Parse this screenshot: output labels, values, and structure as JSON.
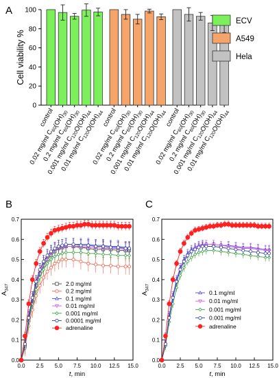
{
  "chart_data": [
    {
      "panel": "A",
      "type": "bar",
      "ylabel": "Cell viability %",
      "ylim": [
        0,
        100
      ],
      "yticks": [
        0,
        20,
        40,
        60,
        80,
        100
      ],
      "legend_position": "right",
      "groups": [
        {
          "name": "ECV",
          "color": "#7cf05a",
          "categories": [
            "control",
            "0.02 mg/ml C60(OH)30",
            "0.2 mg/ml C60(OH)30",
            "0.001 mg/ml C120O(OH)44",
            "0.01 mg/ml C120O(OH)44"
          ],
          "values": [
            100,
            97,
            93,
            99.5,
            97.5
          ],
          "errors": [
            0,
            8,
            3,
            6.5,
            4
          ]
        },
        {
          "name": "A549",
          "color": "#f5a46a",
          "categories": [
            "control",
            "0.02 mg/ml C60(OH)30",
            "0.2 mg/ml C60(OH)30",
            "0.001 mg/ml C120O(OH)44",
            "0.01 mg/ml C120O(OH)44"
          ],
          "values": [
            100,
            95,
            90,
            98.5,
            92.5
          ],
          "errors": [
            0,
            5,
            5,
            2,
            3
          ]
        },
        {
          "name": "Hela",
          "color": "#c2c2c2",
          "categories": [
            "control",
            "0.02 mg/ml C60(OH)30",
            "0.2 mg/ml C60(OH)30",
            "0.001 mg/ml C120O(OH)44",
            "0.01 mg/ml C120O(OH)44"
          ],
          "values": [
            100,
            95,
            93,
            86,
            84
          ],
          "errors": [
            0,
            7,
            4,
            8,
            8
          ]
        }
      ]
    },
    {
      "panel": "B",
      "type": "line",
      "xlabel_italic": "t",
      "xlabel_rest": ", min",
      "ylabel": "A",
      "ylabel_sub": "347",
      "xlim": [
        0,
        15
      ],
      "ylim": [
        0,
        0.7
      ],
      "xticks": [
        "0.0",
        "2.5",
        "5.0",
        "7.5",
        "10.0",
        "12.5",
        "15.0"
      ],
      "yticks": [
        "0.0",
        "0.1",
        "0.2",
        "0.3",
        "0.4",
        "0.5",
        "0.6",
        "0.7"
      ],
      "legend_position": "bottom-right",
      "series": [
        {
          "name": "2.0 mg/ml",
          "color": "#444444",
          "marker": "square-open",
          "x": [
            0,
            0.5,
            1,
            1.5,
            2,
            2.5,
            3,
            3.5,
            4,
            4.5,
            5,
            5.5,
            6,
            7,
            8,
            9,
            10,
            11,
            12,
            13,
            14,
            14.5
          ],
          "y": [
            0.0,
            0.07,
            0.2,
            0.29,
            0.37,
            0.43,
            0.47,
            0.5,
            0.52,
            0.54,
            0.555,
            0.56,
            0.565,
            0.565,
            0.56,
            0.555,
            0.55,
            0.55,
            0.55,
            0.545,
            0.545,
            0.545
          ],
          "err": 0.04
        },
        {
          "name": "0.2 mg/ml",
          "color": "#ff5a46",
          "marker": "circle-open",
          "x": [
            0,
            0.5,
            1,
            1.5,
            2,
            2.5,
            3,
            3.5,
            4,
            4.5,
            5,
            5.5,
            6,
            7,
            8,
            9,
            10,
            11,
            12,
            13,
            14,
            14.5
          ],
          "y": [
            0.0,
            0.06,
            0.17,
            0.25,
            0.32,
            0.37,
            0.41,
            0.44,
            0.46,
            0.48,
            0.49,
            0.5,
            0.5,
            0.5,
            0.49,
            0.48,
            0.475,
            0.47,
            0.47,
            0.465,
            0.465,
            0.465
          ],
          "err": 0.04
        },
        {
          "name": "0.1 mg/ml",
          "color": "#4a4ae6",
          "marker": "triangle-open",
          "x": [
            0,
            0.5,
            1,
            1.5,
            2,
            2.5,
            3,
            3.5,
            4,
            4.5,
            5,
            5.5,
            6,
            7,
            8,
            9,
            10,
            11,
            12,
            13,
            14,
            14.5
          ],
          "y": [
            0.0,
            0.08,
            0.22,
            0.31,
            0.39,
            0.45,
            0.49,
            0.52,
            0.54,
            0.555,
            0.565,
            0.57,
            0.575,
            0.575,
            0.575,
            0.575,
            0.57,
            0.57,
            0.565,
            0.565,
            0.56,
            0.56
          ],
          "err": 0.03
        },
        {
          "name": "0.01 mg/ml",
          "color": "#e055e0",
          "marker": "triangle-down-open",
          "x": [
            0,
            0.5,
            1,
            1.5,
            2,
            2.5,
            3,
            3.5,
            4,
            4.5,
            5,
            5.5,
            6,
            7,
            8,
            9,
            10,
            11,
            12,
            13,
            14,
            14.5
          ],
          "y": [
            0.0,
            0.08,
            0.21,
            0.3,
            0.38,
            0.44,
            0.48,
            0.51,
            0.53,
            0.545,
            0.555,
            0.56,
            0.565,
            0.565,
            0.565,
            0.56,
            0.56,
            0.555,
            0.555,
            0.555,
            0.55,
            0.55
          ],
          "err": 0.03
        },
        {
          "name": "0.001 mg/ml",
          "color": "#3da53d",
          "marker": "diamond-open",
          "x": [
            0,
            0.5,
            1,
            1.5,
            2,
            2.5,
            3,
            3.5,
            4,
            4.5,
            5,
            5.5,
            6,
            7,
            8,
            9,
            10,
            11,
            12,
            13,
            14,
            14.5
          ],
          "y": [
            0.0,
            0.07,
            0.19,
            0.28,
            0.35,
            0.41,
            0.45,
            0.48,
            0.5,
            0.515,
            0.525,
            0.53,
            0.535,
            0.535,
            0.535,
            0.53,
            0.53,
            0.525,
            0.525,
            0.52,
            0.52,
            0.52
          ],
          "err": 0.03
        },
        {
          "name": "0.0001 mg/ml",
          "color": "#2e3fa8",
          "marker": "circle-open",
          "x": [
            0,
            0.5,
            1,
            1.5,
            2,
            2.5,
            3,
            3.5,
            4,
            4.5,
            5,
            5.5,
            6,
            7,
            8,
            9,
            10,
            11,
            12,
            13,
            14,
            14.5
          ],
          "y": [
            0.0,
            0.08,
            0.21,
            0.31,
            0.39,
            0.45,
            0.49,
            0.52,
            0.54,
            0.555,
            0.565,
            0.57,
            0.575,
            0.575,
            0.57,
            0.57,
            0.565,
            0.565,
            0.56,
            0.56,
            0.555,
            0.555
          ],
          "err": 0.03
        },
        {
          "name": "adrenaline",
          "color": "#ff2020",
          "marker": "circle-filled",
          "x": [
            0,
            0.5,
            1,
            1.5,
            2,
            2.5,
            3,
            3.5,
            4,
            4.5,
            5,
            5.5,
            6,
            6.5,
            7,
            7.5,
            8,
            8.5,
            9,
            9.5,
            10,
            10.5,
            11,
            11.5,
            12,
            12.5,
            13,
            13.5,
            14,
            14.5
          ],
          "y": [
            0.0,
            0.12,
            0.28,
            0.4,
            0.48,
            0.54,
            0.58,
            0.61,
            0.63,
            0.645,
            0.65,
            0.655,
            0.66,
            0.665,
            0.665,
            0.67,
            0.67,
            0.675,
            0.675,
            0.67,
            0.67,
            0.67,
            0.67,
            0.67,
            0.67,
            0.67,
            0.665,
            0.665,
            0.665,
            0.665
          ],
          "err": 0.02
        }
      ]
    },
    {
      "panel": "C",
      "type": "line",
      "xlabel_italic": "t",
      "xlabel_rest": ", min",
      "ylabel": "A",
      "ylabel_sub": "347",
      "xlim": [
        0,
        15
      ],
      "ylim": [
        0,
        0.7
      ],
      "xticks": [
        "0.0",
        "2.5",
        "5.0",
        "7.5",
        "10.0",
        "12.5",
        "15.0"
      ],
      "yticks": [
        "0.0",
        "0.1",
        "0.2",
        "0.3",
        "0.4",
        "0.5",
        "0.6",
        "0.7"
      ],
      "legend_position": "bottom-right",
      "series": [
        {
          "name": "0.1 mg/ml",
          "color": "#4a4ae6",
          "marker": "triangle-open",
          "x": [
            0,
            0.5,
            1,
            1.5,
            2,
            2.5,
            3,
            3.5,
            4,
            4.5,
            5,
            5.5,
            6,
            7,
            8,
            9,
            10,
            11,
            12,
            13,
            14,
            14.5
          ],
          "y": [
            0.0,
            0.08,
            0.22,
            0.32,
            0.4,
            0.46,
            0.5,
            0.53,
            0.55,
            0.56,
            0.57,
            0.575,
            0.575,
            0.575,
            0.57,
            0.57,
            0.565,
            0.56,
            0.56,
            0.555,
            0.55,
            0.55
          ],
          "err": 0.02
        },
        {
          "name": "0.01 mg/ml",
          "color": "#e055e0",
          "marker": "triangle-down-open",
          "x": [
            0,
            0.5,
            1,
            1.5,
            2,
            2.5,
            3,
            3.5,
            4,
            4.5,
            5,
            5.5,
            6,
            7,
            8,
            9,
            10,
            11,
            12,
            13,
            14,
            14.5
          ],
          "y": [
            0.0,
            0.08,
            0.21,
            0.31,
            0.39,
            0.45,
            0.49,
            0.52,
            0.54,
            0.555,
            0.565,
            0.57,
            0.575,
            0.575,
            0.57,
            0.565,
            0.56,
            0.555,
            0.555,
            0.55,
            0.545,
            0.545
          ],
          "err": 0.02
        },
        {
          "name": "0.001 mg/ml",
          "color": "#3da53d",
          "marker": "diamond-open",
          "x": [
            0,
            0.5,
            1,
            1.5,
            2,
            2.5,
            3,
            3.5,
            4,
            4.5,
            5,
            5.5,
            6,
            7,
            8,
            9,
            10,
            11,
            12,
            13,
            14,
            14.5
          ],
          "y": [
            0.0,
            0.07,
            0.19,
            0.28,
            0.36,
            0.42,
            0.46,
            0.49,
            0.51,
            0.525,
            0.535,
            0.54,
            0.545,
            0.545,
            0.54,
            0.535,
            0.53,
            0.525,
            0.52,
            0.515,
            0.51,
            0.51
          ],
          "err": 0.02
        },
        {
          "name": "0.001 mg/ml",
          "color": "#2e3fa8",
          "marker": "circle-open",
          "x": [
            0,
            0.5,
            1,
            1.5,
            2,
            2.5,
            3,
            3.5,
            4,
            4.5,
            5,
            5.5,
            6,
            7,
            8,
            9,
            10,
            11,
            12,
            13,
            14,
            14.5
          ],
          "y": [
            0.0,
            0.08,
            0.21,
            0.31,
            0.39,
            0.45,
            0.49,
            0.52,
            0.54,
            0.55,
            0.56,
            0.565,
            0.565,
            0.565,
            0.56,
            0.555,
            0.55,
            0.545,
            0.54,
            0.535,
            0.53,
            0.53
          ],
          "err": 0.02
        },
        {
          "name": "adrenaline",
          "color": "#ff2020",
          "marker": "circle-filled",
          "x": [
            0,
            0.5,
            1,
            1.5,
            2,
            2.5,
            3,
            3.5,
            4,
            4.5,
            5,
            5.5,
            6,
            6.5,
            7,
            7.5,
            8,
            8.5,
            9,
            9.5,
            10,
            10.5,
            11,
            11.5,
            12,
            12.5,
            13,
            13.5,
            14,
            14.5
          ],
          "y": [
            0.0,
            0.12,
            0.28,
            0.4,
            0.48,
            0.54,
            0.58,
            0.61,
            0.63,
            0.645,
            0.65,
            0.655,
            0.66,
            0.665,
            0.665,
            0.67,
            0.67,
            0.675,
            0.675,
            0.67,
            0.67,
            0.67,
            0.67,
            0.67,
            0.67,
            0.67,
            0.665,
            0.665,
            0.665,
            0.665
          ],
          "err": 0.015
        }
      ]
    }
  ]
}
